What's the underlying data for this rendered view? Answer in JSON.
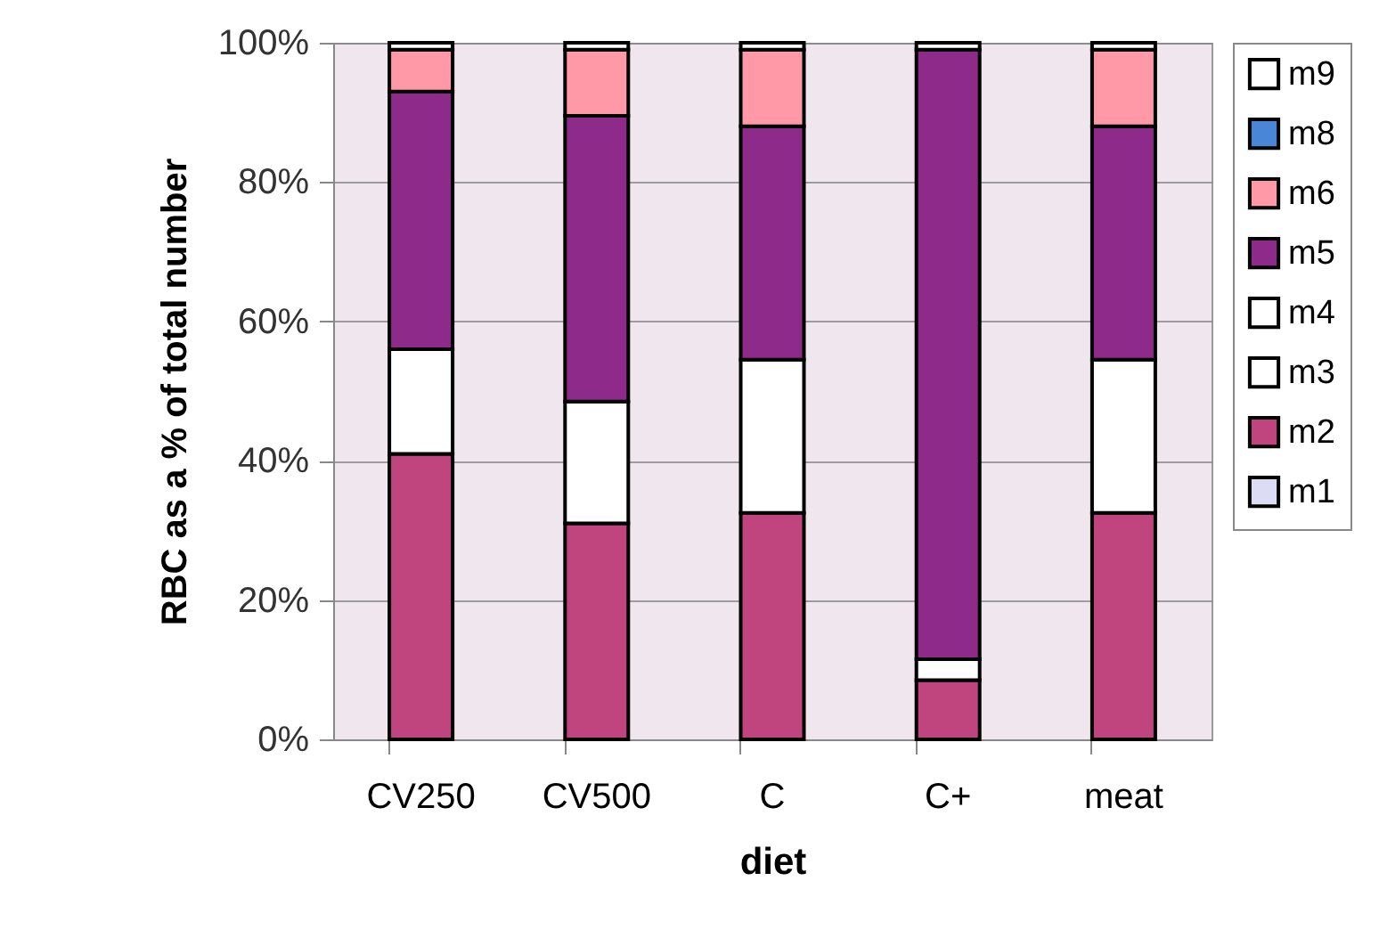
{
  "chart_data": {
    "type": "bar",
    "stacked": true,
    "xlabel": "diet",
    "ylabel": "RBC as a % of total number",
    "categories": [
      "CV250",
      "CV500",
      "C",
      "C+",
      "meat"
    ],
    "series": [
      {
        "name": "m1",
        "color": "#dcdcf5",
        "values": [
          null,
          null,
          null,
          null,
          null
        ]
      },
      {
        "name": "m2",
        "color": "#c0457f",
        "values": [
          41,
          31,
          32.5,
          8.5,
          32.5
        ]
      },
      {
        "name": "m3",
        "color": "#ffffff",
        "values": [
          15,
          17.5,
          22,
          3,
          22
        ]
      },
      {
        "name": "m4",
        "color": "#ffffff",
        "values": [
          null,
          null,
          null,
          null,
          null
        ]
      },
      {
        "name": "m5",
        "color": "#8e2a8a",
        "values": [
          37,
          41,
          33.5,
          87.5,
          33.5
        ]
      },
      {
        "name": "m6",
        "color": "#ff99a8",
        "values": [
          6,
          9.5,
          11,
          null,
          11
        ]
      },
      {
        "name": "m8",
        "color": "#4a86d8",
        "values": [
          null,
          null,
          null,
          null,
          null
        ]
      },
      {
        "name": "m9",
        "color": "#ffffff",
        "values": [
          1,
          1,
          1,
          1,
          1
        ]
      }
    ],
    "ylim": [
      0,
      100
    ],
    "yticks": [
      {
        "value": 0,
        "label": "0%"
      },
      {
        "value": 20,
        "label": "20%"
      },
      {
        "value": 40,
        "label": "40%"
      },
      {
        "value": 60,
        "label": "60%"
      },
      {
        "value": 80,
        "label": "80%"
      },
      {
        "value": 100,
        "label": "100%"
      }
    ],
    "grid": "y",
    "legend": "right"
  }
}
